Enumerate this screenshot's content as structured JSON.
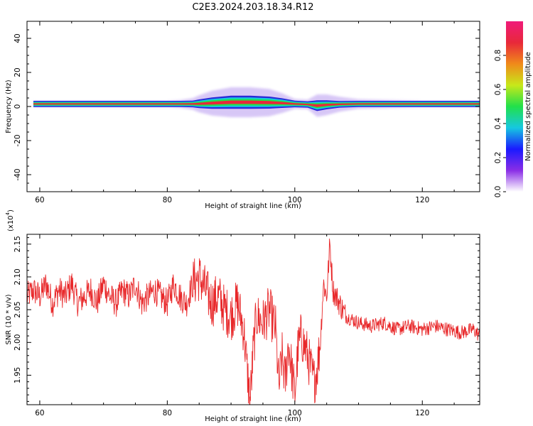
{
  "title": "C2E3.2024.203.18.34.R12",
  "colors": {
    "snr_line": "#e8282a",
    "axis": "#000000",
    "ridge_core": "#e8283a",
    "ridge_mid": "#21e04a",
    "ridge_outer": "#16c8e0",
    "ridge_edge": "#2a2ad8",
    "halo": "#b89af0"
  },
  "chart_data": [
    {
      "type": "heatmap",
      "xlabel": "Height of straight line (km)",
      "ylabel": "Frequency (Hz)",
      "xlim": [
        58,
        129
      ],
      "ylim": [
        -50,
        50
      ],
      "xticks": [
        60,
        80,
        100,
        120
      ],
      "yticks": [
        40,
        20,
        0,
        -20,
        -40
      ],
      "x_start": 59,
      "grid": false,
      "ridge_profile": {
        "height_km": [
          59,
          62,
          65,
          70,
          75,
          80,
          82,
          84,
          85,
          87,
          90,
          93,
          96,
          98,
          100,
          102,
          103.5,
          105,
          107,
          110,
          115,
          120,
          125,
          129
        ],
        "center_hz": [
          1.5,
          1.5,
          1.5,
          1.5,
          1.5,
          1.5,
          1.5,
          1.5,
          1.6,
          2.0,
          2.5,
          2.5,
          2.3,
          2.0,
          1.5,
          1.2,
          0.5,
          1.0,
          1.3,
          1.5,
          1.5,
          1.5,
          1.5,
          1.5
        ],
        "halfwidth_hz": [
          1.5,
          1.5,
          1.5,
          1.5,
          1.5,
          1.5,
          1.5,
          1.6,
          2.2,
          3.0,
          3.5,
          3.5,
          3.2,
          2.5,
          1.6,
          1.5,
          2.8,
          2.3,
          1.6,
          1.5,
          1.5,
          1.5,
          1.5,
          1.5
        ],
        "halo_hz": [
          0,
          0,
          0,
          0,
          0,
          0,
          0.5,
          1.5,
          2.5,
          4.0,
          5.0,
          5.0,
          4.5,
          3.0,
          1.0,
          1.0,
          3.5,
          3.5,
          2.5,
          1.0,
          0.5,
          0,
          0,
          0
        ]
      },
      "colorbar": {
        "label": "Normalized spectral amplitude",
        "ticks": [
          0.0,
          0.2,
          0.4,
          0.6,
          0.8
        ],
        "range": [
          0,
          1
        ],
        "colormap": [
          "#ffffff",
          "#8a2ee6",
          "#1a1aff",
          "#16c8e0",
          "#21e04a",
          "#c8e81a",
          "#f08a1a",
          "#e8283a",
          "#f01a7a"
        ]
      }
    },
    {
      "type": "line",
      "xlabel": "Height of straight line (km)",
      "ylabel": "SNR (10 * v/v)",
      "y_multiplier": "(x10",
      "y_multiplier_exp": "4",
      "y_multiplier_close": ")",
      "xlim": [
        58,
        129
      ],
      "ylim": [
        1.905,
        2.165
      ],
      "xticks": [
        60,
        80,
        100,
        120
      ],
      "yticks": [
        1.95,
        2.0,
        2.05,
        2.1,
        2.15
      ],
      "ytick_labels": [
        "1.95",
        "2.00",
        "2.05",
        "2.10",
        "2.15"
      ],
      "grid": false,
      "series": [
        {
          "x": [
            58,
            59,
            60,
            61,
            62,
            63,
            64,
            65,
            66,
            67,
            68,
            69,
            70,
            71,
            72,
            73,
            74,
            75,
            76,
            77,
            78,
            79,
            80,
            81,
            82,
            83,
            84,
            85,
            86,
            87,
            88,
            89,
            90,
            91,
            92,
            92.5,
            93,
            93.5,
            94,
            95,
            96,
            97,
            97.5,
            98,
            98.5,
            99,
            100,
            100.5,
            101,
            102,
            102.5,
            103,
            103.5,
            104,
            104.5,
            105,
            105.5,
            106,
            107,
            108,
            110,
            112,
            114,
            116,
            118,
            120,
            122,
            124,
            126,
            128,
            129
          ],
          "y": [
            2.07,
            2.08,
            2.07,
            2.09,
            2.06,
            2.08,
            2.07,
            2.09,
            2.06,
            2.07,
            2.08,
            2.06,
            2.09,
            2.07,
            2.06,
            2.08,
            2.07,
            2.09,
            2.06,
            2.07,
            2.08,
            2.07,
            2.06,
            2.09,
            2.07,
            2.06,
            2.09,
            2.1,
            2.08,
            2.06,
            2.07,
            2.05,
            2.04,
            2.06,
            2.02,
            1.96,
            1.91,
            1.99,
            2.04,
            2.03,
            2.05,
            2.02,
            1.93,
            1.98,
            1.94,
            2.0,
            1.92,
            1.99,
            2.01,
            1.98,
            1.96,
            1.94,
            1.96,
            2.0,
            2.09,
            2.07,
            2.15,
            2.08,
            2.06,
            2.04,
            2.03,
            2.025,
            2.03,
            2.02,
            2.025,
            2.02,
            2.025,
            2.02,
            2.015,
            2.02,
            2.01
          ]
        }
      ]
    }
  ]
}
